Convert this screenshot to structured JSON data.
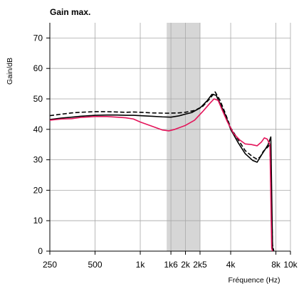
{
  "chart_data": {
    "type": "line",
    "title": "Gain max.",
    "xlabel": "Fréquence (Hz)",
    "ylabel": "Gain/dB",
    "x_scale": "log",
    "xlim": [
      250,
      10000
    ],
    "ylim": [
      0,
      75
    ],
    "grid": true,
    "x_ticks": [
      250,
      500,
      1000,
      1600,
      2000,
      2500,
      4000,
      8000,
      10000
    ],
    "x_tick_labels": [
      "250",
      "500",
      "1k",
      "1k6",
      "2k",
      "2k5",
      "4k",
      "8k",
      "10k"
    ],
    "y_ticks": [
      0,
      10,
      20,
      30,
      40,
      50,
      60,
      70
    ],
    "y_tick_labels": [
      "0",
      "10",
      "20",
      "30",
      "40",
      "50",
      "60",
      "70"
    ],
    "shaded_band": {
      "x_start": 1500,
      "x_end": 2500,
      "color": "#d6d6d6"
    },
    "series": [
      {
        "style": "dashed",
        "color": "#000000",
        "points": [
          [
            250,
            44.5
          ],
          [
            300,
            45.0
          ],
          [
            350,
            45.4
          ],
          [
            400,
            45.6
          ],
          [
            500,
            45.8
          ],
          [
            600,
            45.8
          ],
          [
            700,
            45.7
          ],
          [
            800,
            45.6
          ],
          [
            900,
            45.7
          ],
          [
            1000,
            45.6
          ],
          [
            1200,
            45.4
          ],
          [
            1500,
            45.3
          ],
          [
            1800,
            45.4
          ],
          [
            2000,
            45.6
          ],
          [
            2300,
            46.2
          ],
          [
            2600,
            47.5
          ],
          [
            2900,
            50.0
          ],
          [
            3150,
            52.3
          ],
          [
            3400,
            49.5
          ],
          [
            3700,
            45.0
          ],
          [
            4000,
            40.5
          ],
          [
            4500,
            36.5
          ],
          [
            5000,
            33.0
          ],
          [
            5600,
            31.0
          ],
          [
            6000,
            30.2
          ],
          [
            6300,
            31.0
          ],
          [
            6600,
            32.8
          ],
          [
            7000,
            34.0
          ],
          [
            7300,
            35.0
          ],
          [
            7600,
            2.0
          ],
          [
            7750,
            0
          ]
        ]
      },
      {
        "style": "solid",
        "color": "#000000",
        "points": [
          [
            250,
            43.2
          ],
          [
            300,
            43.7
          ],
          [
            350,
            44.0
          ],
          [
            400,
            44.3
          ],
          [
            500,
            44.6
          ],
          [
            600,
            44.7
          ],
          [
            700,
            44.7
          ],
          [
            800,
            44.6
          ],
          [
            900,
            44.6
          ],
          [
            1000,
            44.5
          ],
          [
            1200,
            44.3
          ],
          [
            1400,
            44.1
          ],
          [
            1600,
            44.0
          ],
          [
            1800,
            44.4
          ],
          [
            2000,
            45.0
          ],
          [
            2200,
            45.5
          ],
          [
            2500,
            47.0
          ],
          [
            2800,
            49.5
          ],
          [
            3000,
            51.5
          ],
          [
            3200,
            51.2
          ],
          [
            3400,
            48.5
          ],
          [
            3700,
            44.5
          ],
          [
            4000,
            40.0
          ],
          [
            4500,
            35.5
          ],
          [
            5000,
            32.0
          ],
          [
            5600,
            29.8
          ],
          [
            6000,
            29.2
          ],
          [
            6400,
            31.5
          ],
          [
            6800,
            33.5
          ],
          [
            7100,
            35.0
          ],
          [
            7400,
            37.5
          ],
          [
            7600,
            1.0
          ],
          [
            7700,
            0
          ]
        ]
      },
      {
        "style": "solid",
        "color": "#e4145a",
        "points": [
          [
            250,
            43.0
          ],
          [
            300,
            43.4
          ],
          [
            350,
            43.5
          ],
          [
            400,
            43.9
          ],
          [
            500,
            44.2
          ],
          [
            600,
            44.2
          ],
          [
            700,
            44.0
          ],
          [
            800,
            43.8
          ],
          [
            900,
            43.4
          ],
          [
            1000,
            42.4
          ],
          [
            1200,
            41.0
          ],
          [
            1400,
            39.8
          ],
          [
            1550,
            39.5
          ],
          [
            1700,
            40.0
          ],
          [
            2000,
            41.3
          ],
          [
            2300,
            43.0
          ],
          [
            2600,
            45.8
          ],
          [
            2900,
            48.5
          ],
          [
            3100,
            50.0
          ],
          [
            3300,
            49.5
          ],
          [
            3500,
            46.5
          ],
          [
            3800,
            42.5
          ],
          [
            4200,
            38.5
          ],
          [
            4600,
            36.5
          ],
          [
            5000,
            35.2
          ],
          [
            5500,
            35.0
          ],
          [
            6000,
            34.6
          ],
          [
            6400,
            35.8
          ],
          [
            6700,
            37.2
          ],
          [
            7000,
            36.8
          ],
          [
            7300,
            35.0
          ],
          [
            7500,
            1.0
          ],
          [
            7600,
            0
          ]
        ]
      }
    ]
  }
}
